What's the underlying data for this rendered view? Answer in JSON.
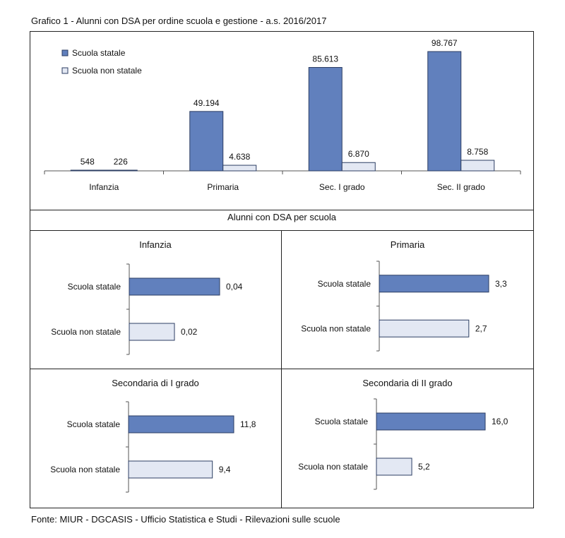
{
  "figure": {
    "title": "Grafico 1 - Alunni con DSA per ordine scuola e gestione - a.s. 2016/2017",
    "source": "Fonte: MIUR - DGCASIS - Ufficio Statistica e Studi - Rilevazioni sulle scuole",
    "section_title": "Alunni con DSA per scuola"
  },
  "colors": {
    "statale": "#6180bd",
    "non_statale": "#e3e8f3",
    "stroke": "#2c3e63"
  },
  "chart_data": [
    {
      "type": "bar",
      "categories": [
        "Infanzia",
        "Primaria",
        "Sec. I grado",
        "Sec. II grado"
      ],
      "series": [
        {
          "name": "Scuola statale",
          "values": [
            548,
            49194,
            85613,
            98767
          ],
          "labels": [
            "548",
            "49.194",
            "85.613",
            "98.767"
          ]
        },
        {
          "name": "Scuola non statale",
          "values": [
            226,
            4638,
            6870,
            8758
          ],
          "labels": [
            "226",
            "4.638",
            "6.870",
            "8.758"
          ]
        }
      ],
      "legend": "top-left"
    },
    {
      "type": "bar",
      "orientation": "horizontal",
      "title": "Infanzia",
      "categories": [
        "Scuola statale",
        "Scuola non statale"
      ],
      "values": [
        0.04,
        0.02
      ],
      "labels": [
        "0,04",
        "0,02"
      ]
    },
    {
      "type": "bar",
      "orientation": "horizontal",
      "title": "Primaria",
      "categories": [
        "Scuola statale",
        "Scuola non statale"
      ],
      "values": [
        3.3,
        2.7
      ],
      "labels": [
        "3,3",
        "2,7"
      ]
    },
    {
      "type": "bar",
      "orientation": "horizontal",
      "title": "Secondaria di I grado",
      "categories": [
        "Scuola statale",
        "Scuola non statale"
      ],
      "values": [
        11.8,
        9.4
      ],
      "labels": [
        "11,8",
        "9,4"
      ]
    },
    {
      "type": "bar",
      "orientation": "horizontal",
      "title": "Secondaria di II grado",
      "categories": [
        "Scuola statale",
        "Scuola non statale"
      ],
      "values": [
        16.0,
        5.2
      ],
      "labels": [
        "16,0",
        "5,2"
      ]
    }
  ]
}
